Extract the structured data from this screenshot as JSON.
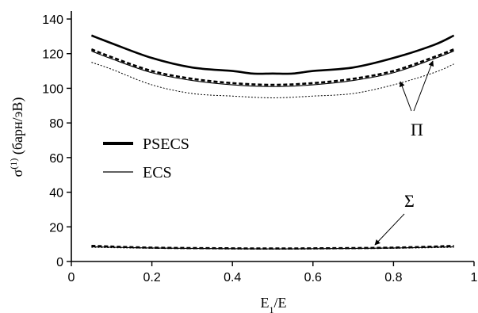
{
  "chart_data": {
    "type": "line",
    "x_axis": {
      "label_main": "E",
      "label_sub": "1",
      "label_rest": "/E",
      "range": [
        0,
        1
      ],
      "ticks": [
        0,
        0.2,
        0.4,
        0.6,
        0.8,
        1
      ],
      "tick_labels": [
        "0",
        "0.2",
        "0.4",
        "0.6",
        "0.8",
        "1"
      ]
    },
    "y_axis": {
      "label_main": "σ",
      "label_sup": "(1)",
      "label_rest": " (барн/эВ)",
      "range": [
        0,
        140
      ],
      "ticks": [
        0,
        20,
        40,
        60,
        80,
        100,
        120,
        140
      ],
      "tick_labels": [
        "0",
        "20",
        "40",
        "60",
        "80",
        "100",
        "120",
        "140"
      ]
    },
    "grid": false,
    "legend": {
      "placement": "left-middle",
      "items": [
        {
          "label": "PSECS",
          "style": "thick-solid"
        },
        {
          "label": "ECS",
          "style": "thin-solid"
        }
      ]
    },
    "annotations": [
      {
        "text": "Π",
        "points_to": [
          [
            0.82,
            104
          ],
          [
            0.88,
            117
          ]
        ],
        "anchor": [
          0.86,
          84
        ]
      },
      {
        "text": "Σ",
        "points_to": [
          [
            0.76,
            9
          ]
        ],
        "anchor": [
          0.86,
          30
        ]
      }
    ],
    "series": [
      {
        "group": "Π",
        "style": "thick-solid",
        "x": [
          0.05,
          0.1,
          0.2,
          0.3,
          0.4,
          0.45,
          0.5,
          0.55,
          0.6,
          0.7,
          0.8,
          0.9,
          0.95
        ],
        "y": [
          130.5,
          126,
          117.5,
          112,
          110,
          108.5,
          108.5,
          108.5,
          110,
          112,
          117.5,
          125,
          130.5
        ]
      },
      {
        "group": "Π",
        "style": "thick-dashed",
        "x": [
          0.05,
          0.1,
          0.2,
          0.3,
          0.4,
          0.5,
          0.6,
          0.7,
          0.8,
          0.9,
          0.95
        ],
        "y": [
          122.5,
          118,
          110,
          105.5,
          103,
          102,
          103,
          105.5,
          110,
          118,
          122.5
        ]
      },
      {
        "group": "Π",
        "style": "thin-solid",
        "x": [
          0.05,
          0.1,
          0.2,
          0.3,
          0.4,
          0.5,
          0.6,
          0.7,
          0.8,
          0.9,
          0.95
        ],
        "y": [
          121.5,
          117,
          109,
          104.5,
          102,
          101,
          102,
          104.5,
          109,
          117,
          121.5
        ]
      },
      {
        "group": "Π",
        "style": "thin-dotted",
        "x": [
          0.05,
          0.1,
          0.2,
          0.3,
          0.4,
          0.5,
          0.6,
          0.7,
          0.8,
          0.9,
          0.95
        ],
        "y": [
          115,
          111,
          102,
          97,
          95.5,
          94.5,
          95.5,
          97,
          102,
          109,
          114
        ]
      },
      {
        "group": "Σ",
        "style": "thick-dashed",
        "x": [
          0.05,
          0.2,
          0.4,
          0.5,
          0.6,
          0.8,
          0.95
        ],
        "y": [
          9,
          8,
          7.6,
          7.5,
          7.6,
          8,
          9
        ]
      },
      {
        "group": "Σ",
        "style": "thin-solid",
        "x": [
          0.05,
          0.2,
          0.4,
          0.5,
          0.6,
          0.8,
          0.95
        ],
        "y": [
          8.5,
          7.8,
          7.4,
          7.3,
          7.4,
          7.8,
          8.5
        ]
      },
      {
        "group": "Σ",
        "style": "thin-dotted",
        "x": [
          0.05,
          0.2,
          0.4,
          0.5,
          0.6,
          0.8,
          0.95
        ],
        "y": [
          8.2,
          7.6,
          7.2,
          7.1,
          7.2,
          7.6,
          8.2
        ]
      }
    ]
  }
}
